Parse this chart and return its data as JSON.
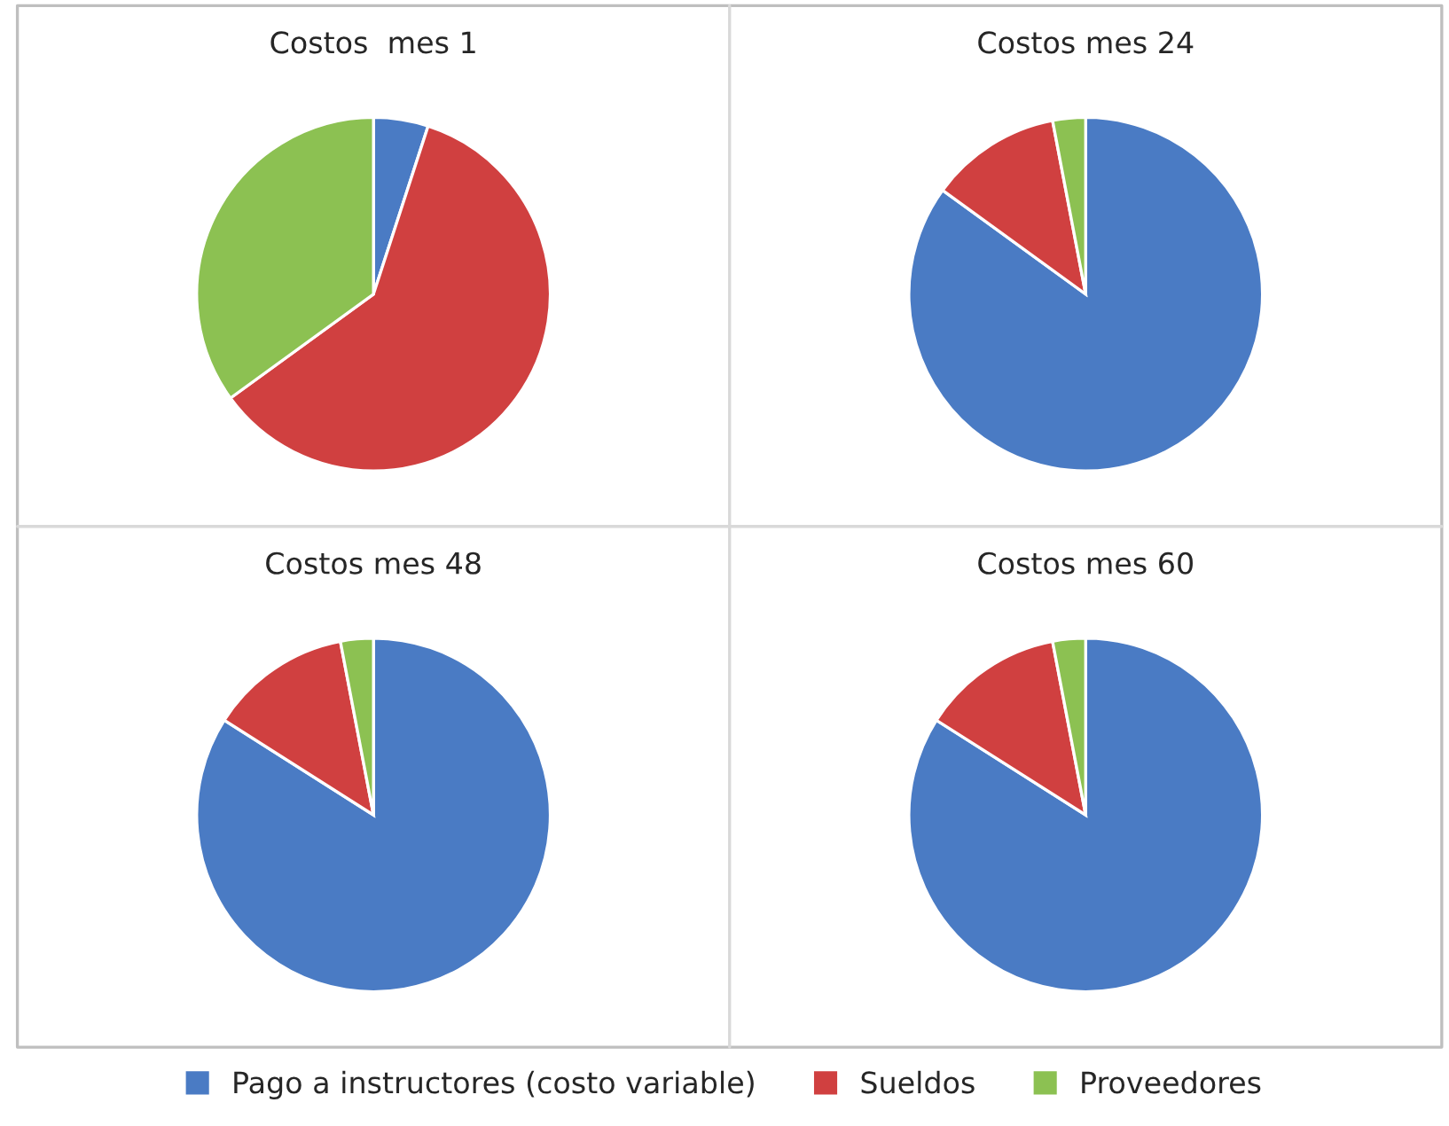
{
  "chart_data": [
    {
      "type": "pie",
      "title": "Costos  mes 1",
      "categories": [
        "Pago a instructores (costo variable)",
        "Sueldos",
        "Proveedores"
      ],
      "values": [
        5,
        60,
        35
      ],
      "colors": [
        "#4a7bc4",
        "#d04040",
        "#8cc152"
      ],
      "legend": "bottom"
    },
    {
      "type": "pie",
      "title": "Costos mes 24",
      "values": [
        85,
        12,
        3
      ],
      "colors": [
        "#4a7bc4",
        "#d04040",
        "#8cc152"
      ]
    },
    {
      "type": "pie",
      "title": "Costos mes 48",
      "values": [
        84,
        13,
        3
      ],
      "colors": [
        "#4a7bc4",
        "#d04040",
        "#8cc152"
      ]
    },
    {
      "type": "pie",
      "title": "Costos mes 60",
      "values": [
        84,
        13,
        3
      ],
      "colors": [
        "#4a7bc4",
        "#d04040",
        "#8cc152"
      ]
    }
  ]
}
